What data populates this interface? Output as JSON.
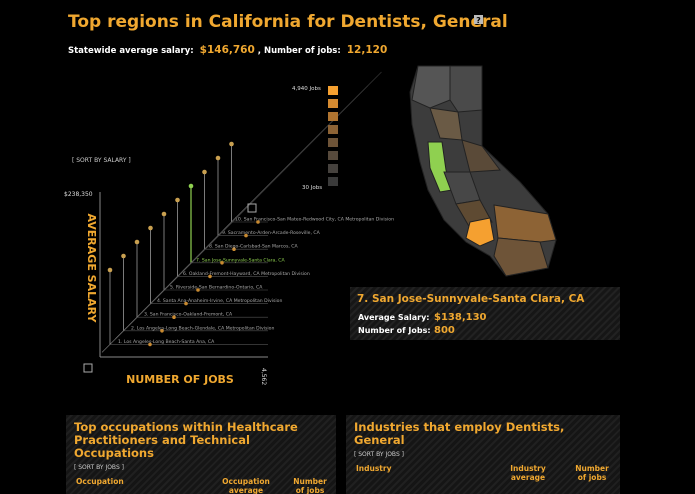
{
  "header": {
    "title": "Top regions in California for Dentists, General"
  },
  "summary": {
    "salary_label": "Statewide average salary:",
    "salary": "$146,760",
    "jobs_label": ", Number of jobs:",
    "jobs": "12,120"
  },
  "chart": {
    "sort": "[ SORT BY SALARY ]",
    "y_label": "AVERAGE SALARY",
    "x_label": "NUMBER OF JOBS",
    "y_max": "$238,350",
    "x_max": "4,562",
    "regions": [
      "10. San Francisco-San Mateo-Redwood City, CA Metropolitan Division",
      "9. Sacramento-Arden-Arcade-Roseville, CA",
      "8. San Diego-Carlsbad-San Marcos, CA",
      "7. San Jose-Sunnyvale-Santa Clara, CA",
      "6. Oakland-Fremont-Hayward, CA Metropolitan Division",
      "5. Riverside-San Bernardino-Ontario, CA",
      "4. Santa Ana-Anaheim-Irvine, CA Metropolitan Division",
      "3. San Francisco-Oakland-Fremont, CA",
      "2. Los Angeles-Long Beach-Glendale, CA Metropolitan Division",
      "1. Los Angeles-Long Beach-Santa Ana, CA"
    ]
  },
  "legend": {
    "max": "4,940 Jobs",
    "min": "30 Jobs"
  },
  "detail": {
    "title": "7. San Jose-Sunnyvale-Santa Clara, CA",
    "salary_label": "Average Salary:",
    "salary": "$138,130",
    "jobs_label": "Number of Jobs:",
    "jobs": "800"
  },
  "occupations": {
    "title": "Top occupations within Healthcare Practitioners and Technical Occupations",
    "sort": "[ SORT BY JOBS ]",
    "columns": [
      "Occupation",
      "Occupation average",
      "Number of jobs"
    ]
  },
  "industries": {
    "title": "Industries that employ Dentists, General",
    "sort": "[ SORT BY JOBS ]",
    "columns": [
      "Industry",
      "Industry average",
      "Number of jobs"
    ]
  }
}
